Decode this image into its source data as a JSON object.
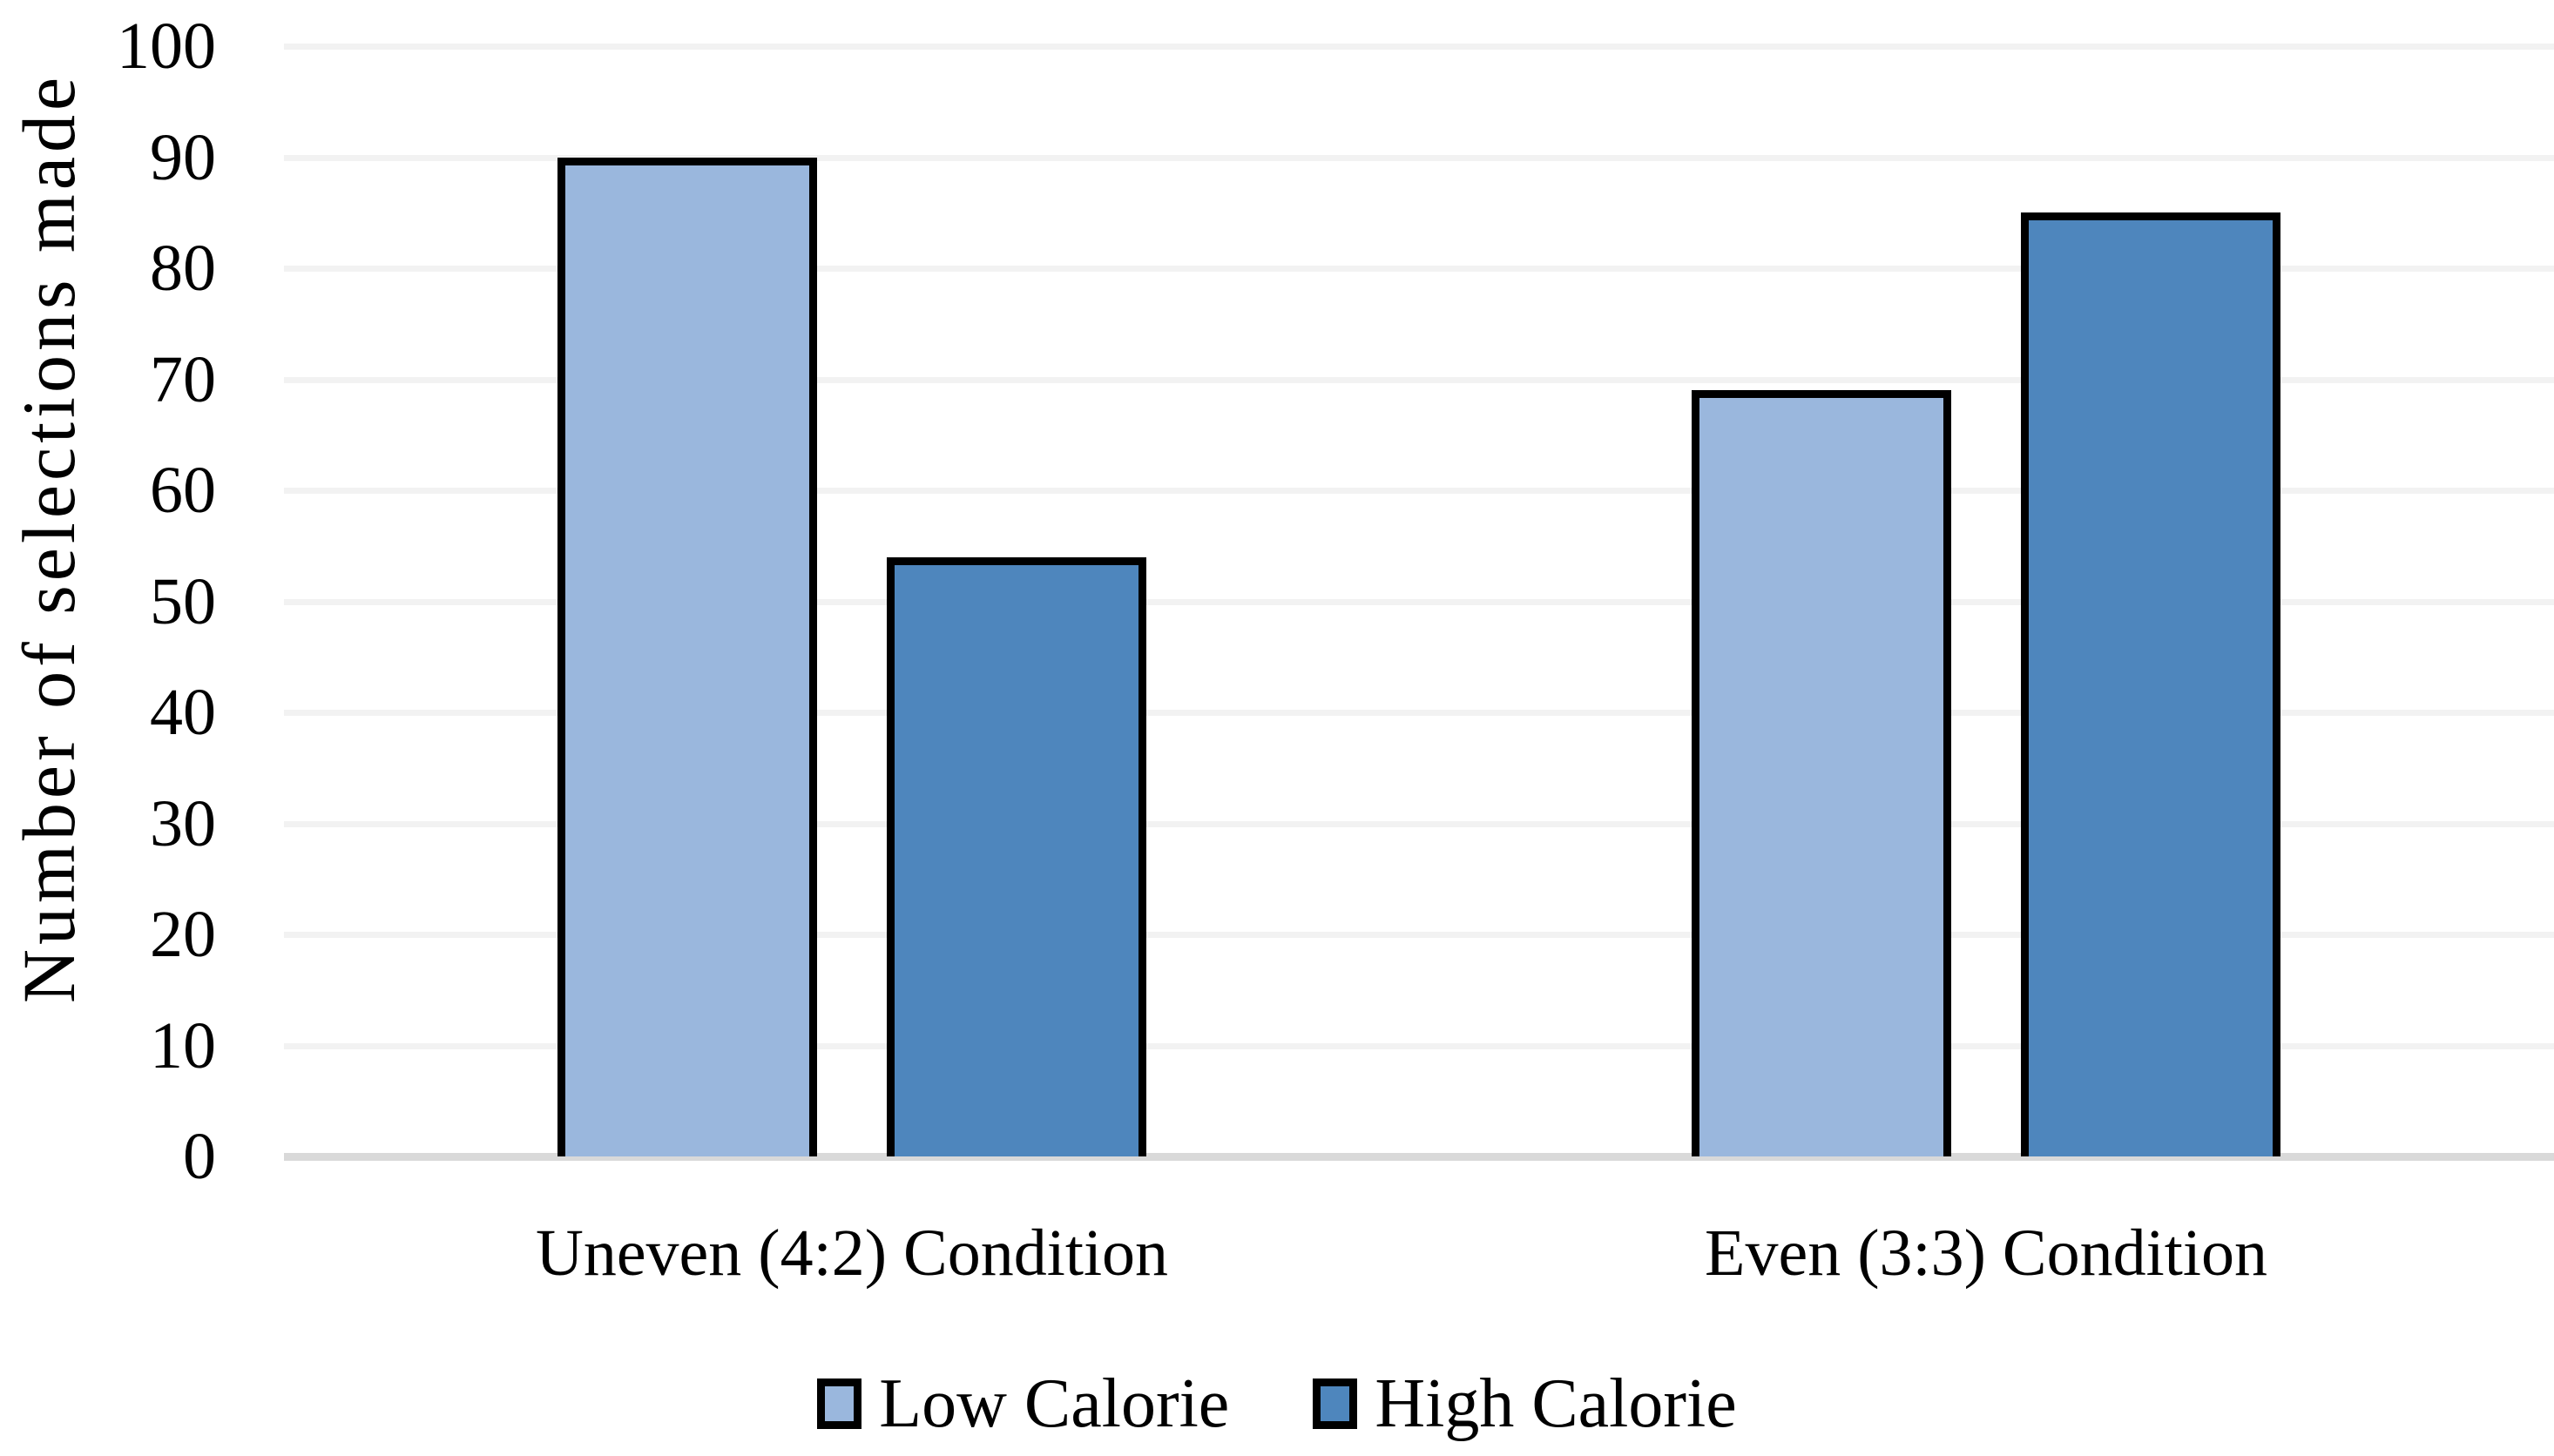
{
  "chart_data": {
    "type": "bar",
    "title": "",
    "categories": [
      "Uneven (4:2) Condition",
      "Even (3:3) Condition"
    ],
    "series": [
      {
        "name": "Low Calorie",
        "color": "#9AB7DD",
        "values": [
          90,
          69
        ]
      },
      {
        "name": "High Calorie",
        "color": "#4E86BD",
        "values": [
          54,
          85
        ]
      }
    ],
    "ylabel": "Number of selections made",
    "xlabel": "",
    "ylim": [
      0,
      100
    ],
    "ytick_step": 10,
    "yticks": [
      "0",
      "10",
      "20",
      "30",
      "40",
      "50",
      "60",
      "70",
      "80",
      "90",
      "100"
    ],
    "grid": "horizontal",
    "legend_position": "bottom-center",
    "styles": {
      "bar_border_color": "#000000",
      "gridline_color": "#F2F2F2",
      "axis_line_color": "#D9D9D9",
      "text_color": "#000000",
      "background": "#FFFFFF"
    }
  }
}
